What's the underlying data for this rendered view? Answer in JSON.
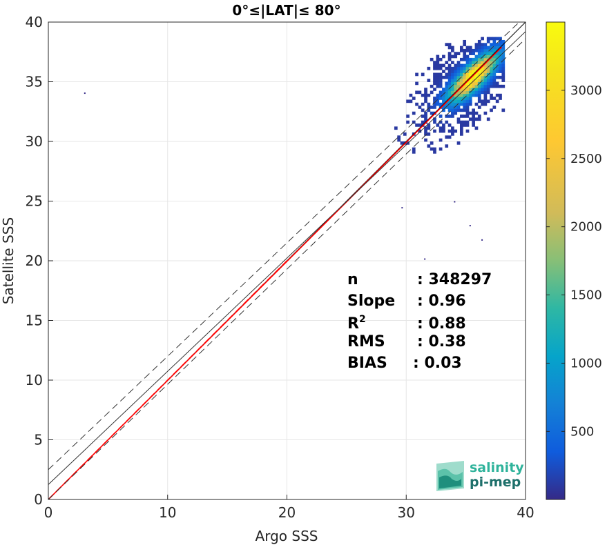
{
  "chart_data": {
    "type": "heatmap",
    "title": "0°≤|LAT|≤ 80°",
    "xlabel": "Argo SSS",
    "ylabel": "Satellite SSS",
    "xlim": [
      0,
      40
    ],
    "ylim": [
      0,
      40
    ],
    "x_ticks": [
      "0",
      "10",
      "20",
      "30",
      "40"
    ],
    "y_ticks": [
      "0",
      "5",
      "10",
      "15",
      "20",
      "25",
      "30",
      "35",
      "40"
    ],
    "grid": true,
    "colorbar": {
      "range": [
        1,
        3500
      ],
      "ticks": [
        "500",
        "1000",
        "1500",
        "2000",
        "2500",
        "3000"
      ],
      "colormap": "parula"
    },
    "density_cloud": {
      "x_range": [
        28,
        38
      ],
      "y_range": [
        26,
        38.5
      ],
      "peak": [
        35.5,
        35.3
      ],
      "peak_count": 3400
    },
    "outliers": [
      [
        3,
        34.1
      ],
      [
        29.6,
        24.5
      ],
      [
        35.3,
        23
      ],
      [
        36.3,
        21.8
      ],
      [
        31.5,
        20.2
      ],
      [
        34,
        25
      ]
    ],
    "lines": [
      {
        "kind": "one-to-one",
        "color": "#000000",
        "style": "solid",
        "points": [
          [
            0,
            0
          ],
          [
            40,
            40
          ]
        ]
      },
      {
        "kind": "fit",
        "color": "#ff0000",
        "style": "solid",
        "points": [
          [
            0,
            0
          ],
          [
            38,
            37.9
          ]
        ]
      },
      {
        "kind": "fit-dashed-extension",
        "color": "#ff0000",
        "style": "dashed",
        "points": [
          [
            0,
            0
          ],
          [
            20,
            20
          ]
        ]
      },
      {
        "kind": "mean",
        "color": "#333333",
        "style": "solid",
        "points": [
          [
            0,
            1.25
          ],
          [
            40,
            39.2
          ]
        ]
      },
      {
        "kind": "upper-bound",
        "color": "#333333",
        "style": "dashed",
        "points": [
          [
            0,
            2.5
          ],
          [
            40,
            40.5
          ]
        ]
      },
      {
        "kind": "lower-bound",
        "color": "#333333",
        "style": "dashed",
        "points": [
          [
            0,
            0
          ],
          [
            40,
            38.6
          ]
        ]
      }
    ],
    "stats": [
      {
        "label": "n",
        "value": ": 348297"
      },
      {
        "label": "Slope",
        "value": ": 0.96"
      },
      {
        "label": "R",
        "sup": "2",
        "value": ": 0.88"
      },
      {
        "label": "RMS",
        "value": ": 0.38"
      },
      {
        "label": "BIAS",
        "value": ": 0.03"
      }
    ]
  },
  "logo": {
    "line1": "salinity",
    "line2": "pi-mep",
    "color1": "#2fb39b",
    "color2": "#1d6f6a"
  }
}
